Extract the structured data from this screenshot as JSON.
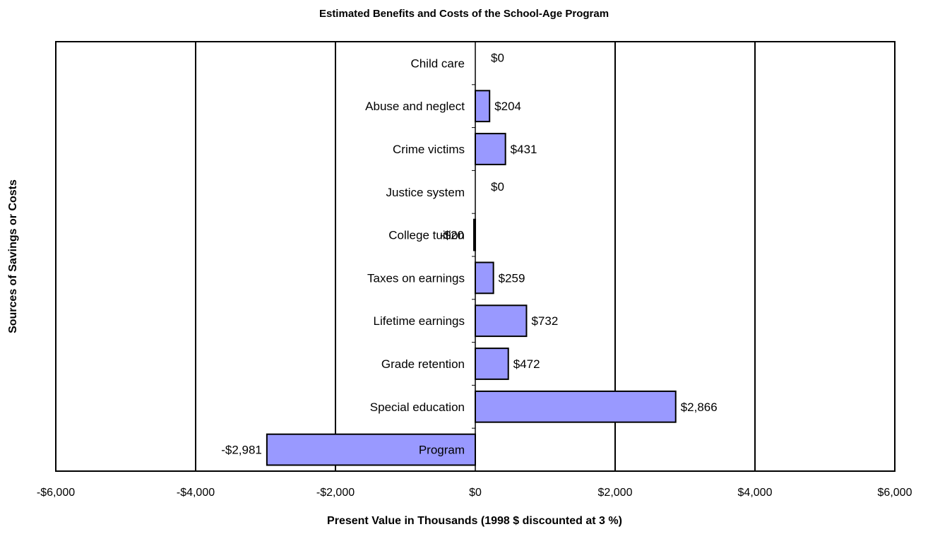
{
  "chart_data": {
    "type": "bar",
    "orientation": "horizontal",
    "title": "Estimated Benefits and Costs of the School-Age Program",
    "xlabel": "Present Value in Thousands (1998 $ discounted at 3 %)",
    "ylabel": "Sources of Savings or Costs",
    "categories": [
      "Child care",
      "Abuse and neglect",
      "Crime victims",
      "Justice system",
      "College tuition",
      "Taxes on earnings",
      "Lifetime earnings",
      "Grade retention",
      "Special education",
      "Program"
    ],
    "values": [
      0,
      204,
      431,
      0,
      -20,
      259,
      732,
      472,
      2866,
      -2981
    ],
    "data_labels": [
      "$0",
      "$204",
      "$431",
      "$0",
      "-$20",
      "$259",
      "$732",
      "$472",
      "$2,866",
      "-$2,981"
    ],
    "xlim": [
      -6000,
      6000
    ],
    "xticks": [
      -6000,
      -4000,
      -2000,
      0,
      2000,
      4000,
      6000
    ],
    "xtick_labels": [
      "-$6,000",
      "-$4,000",
      "-$2,000",
      "$0",
      "$2,000",
      "$4,000",
      "$6,000"
    ],
    "grid": "vertical",
    "legend": "none",
    "bar_color": "#9999ff"
  }
}
